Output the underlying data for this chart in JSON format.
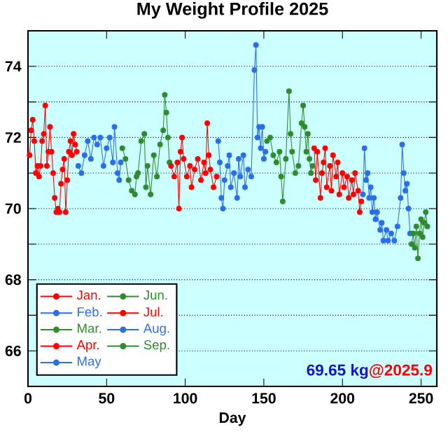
{
  "chart_data": {
    "type": "line",
    "title": "My Weight Profile 2025",
    "xlabel": "Day",
    "xlim": [
      0,
      260
    ],
    "xticks": [
      0,
      50,
      100,
      150,
      200,
      250
    ],
    "ylim": [
      65,
      75
    ],
    "yticks": [
      66,
      {
        "value": 67,
        "label": null
      },
      68,
      {
        "value": 69,
        "label": null
      },
      70,
      {
        "value": 71,
        "label": null
      },
      72,
      {
        "value": 73,
        "label": null
      },
      74
    ],
    "grid": "y",
    "legend": "bottom left",
    "marker": "circle",
    "line_style": "solid",
    "annotations": [
      "69.65 kg",
      "@2025.9"
    ],
    "series": [
      {
        "name": "Jan.",
        "color": "#ff0000",
        "x": [
          1,
          2,
          3,
          4,
          5,
          6,
          7,
          8,
          9,
          10,
          11,
          12,
          13,
          14,
          15,
          16,
          17,
          18,
          19,
          20,
          21,
          22,
          23,
          24,
          25,
          26,
          27,
          28,
          29,
          30,
          31
        ],
        "values": [
          71.5,
          72.2,
          72.5,
          71.9,
          71.0,
          71.2,
          70.9,
          71.2,
          71.9,
          72.1,
          72.9,
          71.2,
          71.6,
          72.3,
          71.6,
          71.0,
          70.3,
          69.9,
          70.0,
          69.9,
          70.7,
          71.1,
          71.4,
          69.9,
          70.8,
          71.6,
          71.9,
          71.5,
          72.1,
          71.8,
          71.6
        ]
      },
      {
        "name": "Feb.",
        "color": "#2a6ee8",
        "x": [
          32,
          34,
          36,
          38,
          40,
          42,
          44,
          46,
          48,
          50,
          52,
          54,
          55,
          57,
          58,
          59
        ],
        "values": [
          71.2,
          71.0,
          71.5,
          71.9,
          71.4,
          72.0,
          71.8,
          72.0,
          71.2,
          71.7,
          72.0,
          71.3,
          72.3,
          71.0,
          70.8,
          71.3
        ]
      },
      {
        "name": "Mar.",
        "color": "#2e8b2e",
        "x": [
          60,
          62,
          64,
          66,
          68,
          69,
          70,
          72,
          74,
          75,
          76,
          78,
          80,
          82,
          84,
          86,
          87,
          88,
          89,
          90
        ],
        "values": [
          71.7,
          71.4,
          70.8,
          70.5,
          70.4,
          70.9,
          71.0,
          71.9,
          72.1,
          70.6,
          71.2,
          70.4,
          71.5,
          70.9,
          71.8,
          72.2,
          73.2,
          72.7,
          72.0,
          71.3
        ]
      },
      {
        "name": "Apr.",
        "color": "#ff0000",
        "x": [
          91,
          93,
          95,
          96,
          97,
          98,
          99,
          101,
          103,
          104,
          106,
          108,
          110,
          112,
          113,
          114,
          115,
          116,
          118,
          120
        ],
        "values": [
          71.2,
          70.9,
          71.3,
          70.0,
          71.6,
          72.0,
          71.4,
          70.9,
          71.2,
          70.6,
          71.1,
          71.4,
          70.8,
          71.3,
          71.0,
          72.4,
          71.5,
          71.1,
          70.6,
          70.9
        ]
      },
      {
        "name": "May",
        "color": "#2a6ee8",
        "x": [
          121,
          122,
          123,
          124,
          125,
          127,
          128,
          129,
          131,
          133,
          134,
          135,
          137,
          138,
          140,
          142,
          144,
          145,
          146,
          147,
          148,
          149,
          150,
          151
        ],
        "values": [
          71.9,
          71.3,
          70.3,
          70.0,
          70.8,
          71.2,
          71.5,
          70.6,
          71.0,
          70.3,
          71.4,
          70.9,
          71.5,
          70.6,
          71.1,
          70.9,
          73.9,
          74.6,
          72.0,
          72.3,
          71.7,
          72.3,
          71.4,
          71.6
        ]
      },
      {
        "name": "Jun.",
        "color": "#2e8b2e",
        "x": [
          152,
          154,
          156,
          158,
          160,
          161,
          162,
          164,
          166,
          167,
          168,
          170,
          172,
          174,
          175,
          176,
          177,
          178,
          179,
          180,
          181
        ],
        "values": [
          71.9,
          72.0,
          71.5,
          71.3,
          71.6,
          70.9,
          70.2,
          71.4,
          73.3,
          72.1,
          71.6,
          71.0,
          71.2,
          72.4,
          72.9,
          72.3,
          71.6,
          72.1,
          71.4,
          71.0,
          71.2
        ]
      },
      {
        "name": "Jul.",
        "color": "#ff0000",
        "x": [
          182,
          183,
          184,
          186,
          187,
          188,
          189,
          190,
          192,
          193,
          194,
          196,
          197,
          198,
          200,
          201,
          203,
          204,
          206,
          207,
          208,
          210,
          211,
          212
        ],
        "values": [
          71.7,
          70.8,
          71.6,
          70.3,
          71.0,
          71.3,
          71.7,
          70.6,
          71.2,
          70.5,
          71.5,
          70.9,
          71.3,
          70.4,
          71.0,
          70.6,
          70.9,
          70.3,
          70.8,
          70.4,
          71.0,
          70.5,
          69.9,
          70.2
        ]
      },
      {
        "name": "Aug.",
        "color": "#2a6ee8",
        "x": [
          213,
          214,
          215,
          216,
          217,
          218,
          219,
          220,
          221,
          222,
          224,
          225,
          226,
          228,
          229,
          231,
          233,
          235,
          237,
          238,
          239,
          240,
          241,
          242,
          243
        ],
        "values": [
          70.4,
          71.7,
          70.8,
          71.0,
          70.3,
          70.6,
          69.9,
          70.3,
          69.7,
          69.9,
          69.4,
          69.6,
          69.1,
          69.4,
          69.1,
          69.3,
          69.1,
          69.5,
          70.3,
          71.8,
          71.0,
          70.5,
          70.7,
          70.0,
          69.3
        ]
      },
      {
        "name": "Sep.",
        "color": "#2e8b2e",
        "x": [
          244,
          245,
          246,
          247,
          248,
          249,
          250,
          251,
          252,
          253,
          254
        ],
        "values": [
          69.0,
          69.3,
          68.9,
          69.5,
          68.6,
          69.3,
          69.7,
          69.2,
          69.6,
          69.9,
          69.5
        ]
      }
    ]
  }
}
